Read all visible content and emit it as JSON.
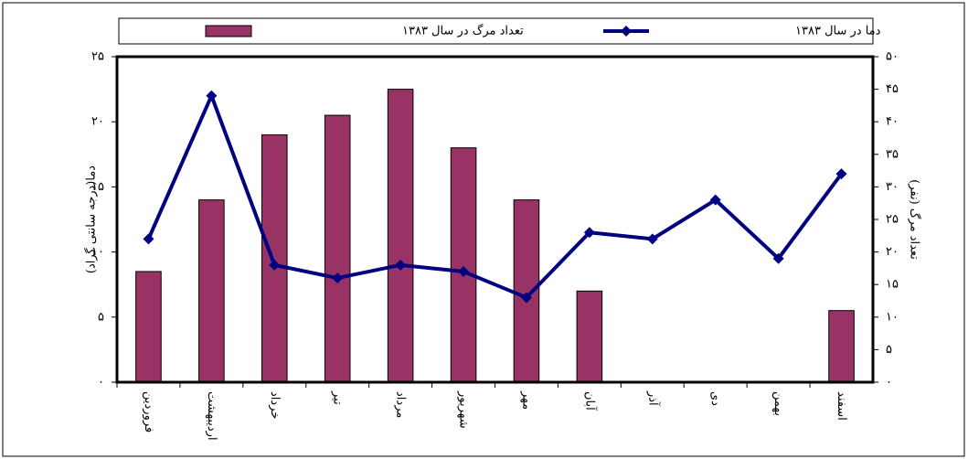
{
  "chart_data": {
    "type": "bar-line",
    "y_label": "دما(درجه سانتی گراد)",
    "y2_label": "تعداد مرگ (نفر)",
    "categories": [
      "فروردین",
      "اردیبهشت",
      "خرداد",
      "تیر",
      "مرداد",
      "شهریور",
      "مهر",
      "آبان",
      "آذر",
      "دی",
      "بهمن",
      "اسفند"
    ],
    "series": [
      {
        "name": "تعداد مرگ در سال ۱۳۸۳",
        "type": "bar",
        "axis": "y2",
        "color": "#993366",
        "values": [
          17,
          28,
          38,
          41,
          45,
          36,
          28,
          14,
          0,
          0,
          0,
          11
        ]
      },
      {
        "name": "دما در سال ۱۳۸۳",
        "type": "line",
        "color": "#000080",
        "values": [
          11,
          22,
          9,
          8,
          9,
          8.5,
          6.5,
          11.5,
          11,
          14,
          9.5,
          16
        ]
      }
    ],
    "ylim": [
      0,
      25
    ],
    "yticks": [
      {
        "value": 0,
        "label": "۰"
      },
      {
        "value": 5,
        "label": "۵"
      },
      {
        "value": 10,
        "label": "۱۰"
      },
      {
        "value": 15,
        "label": "۱۵"
      },
      {
        "value": 20,
        "label": "۲۰"
      },
      {
        "value": 25,
        "label": "۲۵"
      }
    ],
    "y2lim": [
      0,
      50
    ],
    "y2ticks": [
      {
        "value": 0,
        "label": "۰"
      },
      {
        "value": 5,
        "label": "۵"
      },
      {
        "value": 10,
        "label": "۱۰"
      },
      {
        "value": 15,
        "label": "۱۵"
      },
      {
        "value": 20,
        "label": "۲۰"
      },
      {
        "value": 25,
        "label": "۲۵"
      },
      {
        "value": 30,
        "label": "۳۰"
      },
      {
        "value": 35,
        "label": "۳۵"
      },
      {
        "value": 40,
        "label": "۴۰"
      },
      {
        "value": 45,
        "label": "۴۵"
      },
      {
        "value": 50,
        "label": "۵۰"
      }
    ],
    "grid": false
  }
}
